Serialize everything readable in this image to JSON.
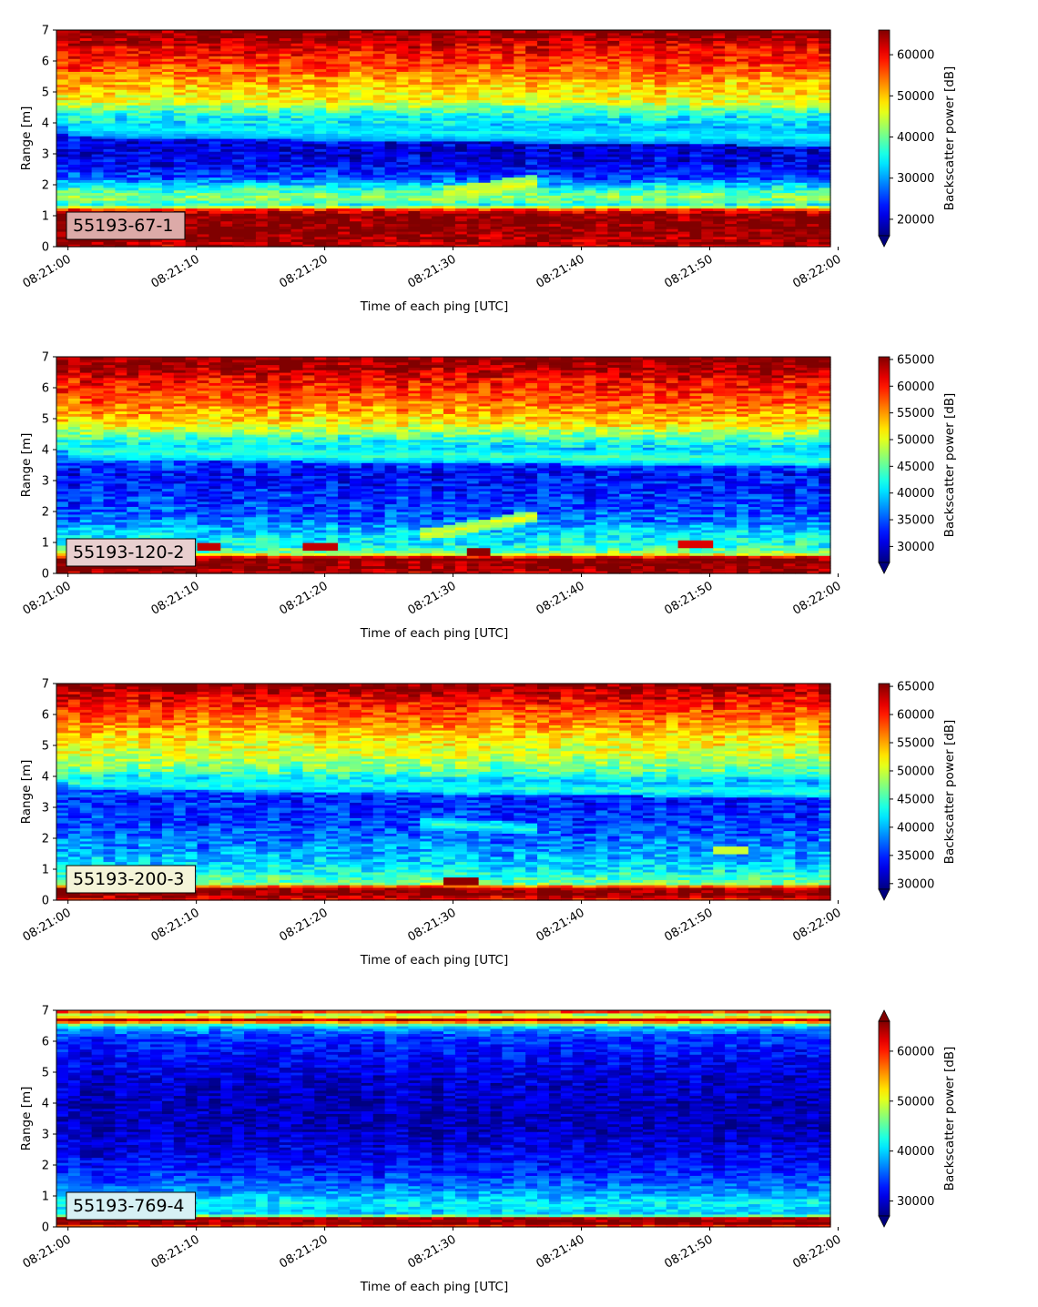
{
  "colors": {
    "colormap": "jet",
    "jet_stops": [
      "#00007f",
      "#0000ff",
      "#007fff",
      "#00ffff",
      "#7fff7f",
      "#ffff00",
      "#ff7f00",
      "#ff0000",
      "#7f0000"
    ],
    "label_box_edge": "#000000"
  },
  "chart_data": [
    {
      "type": "heatmap",
      "label": "55193-67-1",
      "xlabel": "Time of each ping [UTC]",
      "ylabel": "Range [m]",
      "colorbar_label": "Backscatter power [dB]",
      "x_range": [
        "08:21:00",
        "08:22:00"
      ],
      "x_ticks": [
        "08:21:00",
        "08:21:10",
        "08:21:20",
        "08:21:30",
        "08:21:40",
        "08:21:50",
        "08:22:00"
      ],
      "ylim": [
        0,
        7
      ],
      "y_ticks": [
        "0",
        "1",
        "2",
        "3",
        "4",
        "5",
        "6",
        "7"
      ],
      "clim": [
        16000,
        66000
      ],
      "colorbar_ticks": [
        20000,
        30000,
        40000,
        50000,
        60000
      ],
      "colorbar_extend": "min",
      "label_box_color": "#dcaaa8",
      "range_profile": [
        [
          0,
          63000
        ],
        [
          0.2,
          64000
        ],
        [
          0.6,
          66000
        ],
        [
          1.05,
          66000
        ],
        [
          1.2,
          58000
        ],
        [
          1.35,
          36000
        ],
        [
          1.6,
          42000
        ],
        [
          1.9,
          36000
        ],
        [
          2.2,
          27000
        ],
        [
          2.6,
          22000
        ],
        [
          3.1,
          20000
        ],
        [
          3.6,
          22000
        ],
        [
          3.9,
          32000
        ],
        [
          4.3,
          36000
        ],
        [
          4.7,
          46000
        ],
        [
          5.2,
          50000
        ],
        [
          5.7,
          55000
        ],
        [
          6.2,
          59000
        ],
        [
          6.6,
          62000
        ],
        [
          6.85,
          65000
        ],
        [
          7.0,
          66000
        ]
      ],
      "features": [
        {
          "type": "layer",
          "t0": 0,
          "t1": 60,
          "y0": 3.85,
          "y1": 3.55,
          "value": 35000,
          "width": 0.3
        },
        {
          "type": "layer",
          "t0": 29,
          "t1": 37,
          "y0": 1.7,
          "y1": 2.1,
          "value": 46000,
          "width": 0.25
        }
      ],
      "noise": 5500
    },
    {
      "type": "heatmap",
      "label": "55193-120-2",
      "xlabel": "Time of each ping [UTC]",
      "ylabel": "Range [m]",
      "colorbar_label": "Backscatter power [dB]",
      "x_range": [
        "08:21:00",
        "08:22:00"
      ],
      "x_ticks": [
        "08:21:00",
        "08:21:10",
        "08:21:20",
        "08:21:30",
        "08:21:40",
        "08:21:50",
        "08:22:00"
      ],
      "ylim": [
        0,
        7
      ],
      "y_ticks": [
        "0",
        "1",
        "2",
        "3",
        "4",
        "5",
        "6",
        "7"
      ],
      "clim": [
        27000,
        65500
      ],
      "colorbar_ticks": [
        30000,
        35000,
        40000,
        45000,
        50000,
        55000,
        60000,
        65000
      ],
      "colorbar_extend": "min",
      "label_box_color": "#e8cfcf",
      "range_profile": [
        [
          0,
          62000
        ],
        [
          0.15,
          65500
        ],
        [
          0.5,
          65500
        ],
        [
          0.65,
          47000
        ],
        [
          0.9,
          42000
        ],
        [
          1.3,
          40000
        ],
        [
          1.7,
          36000
        ],
        [
          2.2,
          34000
        ],
        [
          2.7,
          33000
        ],
        [
          3.2,
          32000
        ],
        [
          3.6,
          34000
        ],
        [
          4.0,
          39000
        ],
        [
          4.4,
          44000
        ],
        [
          4.8,
          51000
        ],
        [
          5.3,
          55000
        ],
        [
          5.8,
          58000
        ],
        [
          6.3,
          61000
        ],
        [
          6.7,
          64000
        ],
        [
          7.0,
          65500
        ]
      ],
      "features": [
        {
          "type": "layer",
          "t0": 0,
          "t1": 60,
          "y0": 3.95,
          "y1": 3.7,
          "value": 44000,
          "width": 0.25
        },
        {
          "type": "layer",
          "t0": 27,
          "t1": 37,
          "y0": 1.2,
          "y1": 1.9,
          "value": 50000,
          "width": 0.2
        },
        {
          "type": "patch",
          "t": 11,
          "y": 0.85,
          "value": 63000
        },
        {
          "type": "patch",
          "t": 20,
          "y": 0.85,
          "value": 63000
        },
        {
          "type": "patch",
          "t": 32,
          "y": 0.7,
          "value": 65000
        },
        {
          "type": "patch",
          "t": 49,
          "y": 0.95,
          "value": 62000
        }
      ],
      "noise": 4500
    },
    {
      "type": "heatmap",
      "label": "55193-200-3",
      "xlabel": "Time of each ping [UTC]",
      "ylabel": "Range [m]",
      "colorbar_label": "Backscatter power [dB]",
      "x_range": [
        "08:21:00",
        "08:22:00"
      ],
      "x_ticks": [
        "08:21:00",
        "08:21:10",
        "08:21:20",
        "08:21:30",
        "08:21:40",
        "08:21:50",
        "08:22:00"
      ],
      "ylim": [
        0,
        7
      ],
      "y_ticks": [
        "0",
        "1",
        "2",
        "3",
        "4",
        "5",
        "6",
        "7"
      ],
      "clim": [
        29000,
        65500
      ],
      "colorbar_ticks": [
        30000,
        35000,
        40000,
        45000,
        50000,
        55000,
        60000,
        65000
      ],
      "colorbar_extend": "min",
      "label_box_color": "#f4f4d8",
      "range_profile": [
        [
          0,
          60000
        ],
        [
          0.2,
          65500
        ],
        [
          0.4,
          64000
        ],
        [
          0.55,
          47000
        ],
        [
          0.9,
          43000
        ],
        [
          1.4,
          40000
        ],
        [
          1.9,
          38000
        ],
        [
          2.4,
          36000
        ],
        [
          2.9,
          35000
        ],
        [
          3.4,
          35000
        ],
        [
          3.8,
          40000
        ],
        [
          4.2,
          46000
        ],
        [
          4.7,
          50000
        ],
        [
          5.2,
          52000
        ],
        [
          5.7,
          56000
        ],
        [
          6.2,
          59000
        ],
        [
          6.6,
          62000
        ],
        [
          7.0,
          65500
        ]
      ],
      "features": [
        {
          "type": "layer",
          "t0": 0,
          "t1": 60,
          "y0": 3.8,
          "y1": 3.5,
          "value": 44000,
          "width": 0.2
        },
        {
          "type": "layer",
          "t0": 27,
          "t1": 37,
          "y0": 2.5,
          "y1": 2.3,
          "value": 44000,
          "width": 0.2
        },
        {
          "type": "patch",
          "t": 31,
          "y": 0.65,
          "value": 65000
        },
        {
          "type": "patch",
          "t": 52,
          "y": 1.6,
          "value": 50000
        }
      ],
      "noise": 4000
    },
    {
      "type": "heatmap",
      "label": "55193-769-4",
      "xlabel": "Time of each ping [UTC]",
      "ylabel": "Range [m]",
      "colorbar_label": "Backscatter power [dB]",
      "x_range": [
        "08:21:00",
        "08:22:00"
      ],
      "x_ticks": [
        "08:21:00",
        "08:21:10",
        "08:21:20",
        "08:21:30",
        "08:21:40",
        "08:21:50",
        "08:22:00"
      ],
      "ylim": [
        0,
        7
      ],
      "y_ticks": [
        "0",
        "1",
        "2",
        "3",
        "4",
        "5",
        "6",
        "7"
      ],
      "clim": [
        27000,
        66000
      ],
      "colorbar_ticks": [
        30000,
        40000,
        50000,
        60000
      ],
      "colorbar_extend": "both",
      "label_box_color": "#d6f0f4",
      "range_profile": [
        [
          0,
          55000
        ],
        [
          0.1,
          66000
        ],
        [
          0.3,
          64000
        ],
        [
          0.4,
          40000
        ],
        [
          0.8,
          41000
        ],
        [
          1.2,
          37000
        ],
        [
          1.8,
          33000
        ],
        [
          2.4,
          31000
        ],
        [
          3.2,
          29000
        ],
        [
          4.0,
          29000
        ],
        [
          4.8,
          30000
        ],
        [
          5.6,
          32000
        ],
        [
          6.2,
          34000
        ],
        [
          6.5,
          40000
        ],
        [
          6.7,
          64000
        ],
        [
          6.85,
          44000
        ],
        [
          7.0,
          64000
        ]
      ],
      "features": [],
      "noise": 3500
    }
  ]
}
